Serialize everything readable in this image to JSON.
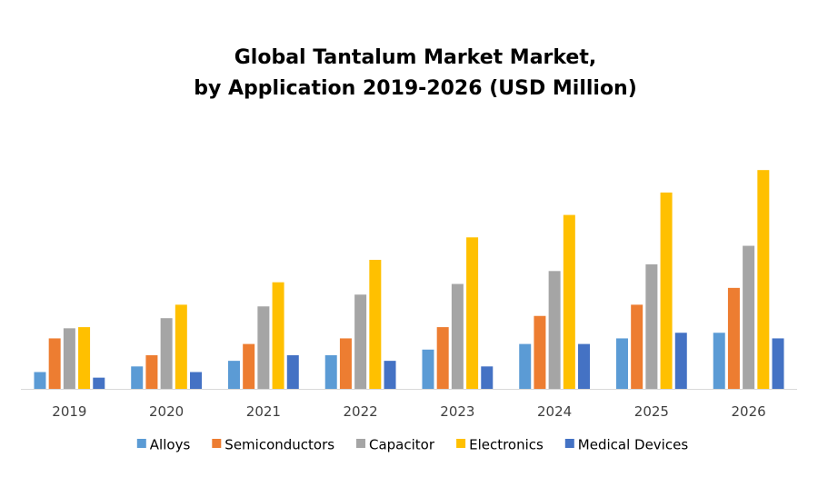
{
  "chart_data": {
    "type": "bar",
    "title_lines": [
      "Global Tantalum Market Market,",
      "by Application 2019-2026 (USD Million)"
    ],
    "categories": [
      "2019",
      "2020",
      "2021",
      "2022",
      "2023",
      "2024",
      "2025",
      "2026"
    ],
    "series": [
      {
        "name": "Alloys",
        "color": "#5B9BD5",
        "values": [
          3,
          4,
          5,
          6,
          7,
          8,
          9,
          10
        ]
      },
      {
        "name": "Semiconductors",
        "color": "#ED7D31",
        "values": [
          9,
          6,
          8,
          9,
          11,
          13,
          15,
          18
        ]
      },
      {
        "name": "Capacitor",
        "color": "#A5A5A5",
        "values": [
          10.8,
          12.6,
          14.7,
          16.8,
          18.7,
          21,
          22.2,
          25.5
        ]
      },
      {
        "name": "Electronics",
        "color": "#FFC000",
        "values": [
          11,
          15,
          19,
          23,
          27,
          31,
          35,
          39
        ]
      },
      {
        "name": "Medical Devices",
        "color": "#4472C4",
        "values": [
          2,
          3,
          6,
          5,
          4,
          8,
          10,
          9
        ]
      }
    ],
    "xlabel": "",
    "ylabel": "",
    "ylim": [
      0,
      40
    ],
    "y_axis_visible": false,
    "grid": false,
    "legend": "bottom"
  }
}
